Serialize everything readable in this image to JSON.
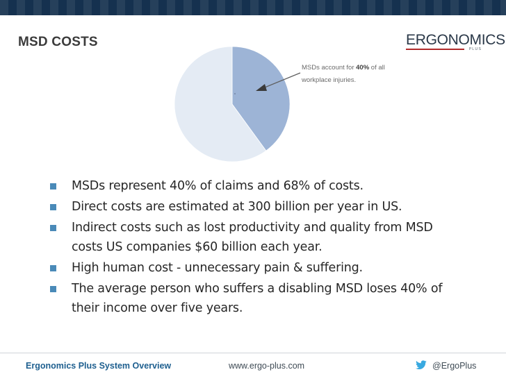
{
  "header": {
    "title": "MSD COSTS",
    "logo_text": "ERGONOMICS",
    "logo_sub": "PLUS"
  },
  "chart_data": {
    "type": "pie",
    "slices": [
      {
        "label": "MSDs",
        "value": 40,
        "color": "#9db4d6"
      },
      {
        "label": "",
        "value": 60,
        "color": "#e4ebf4"
      }
    ],
    "annotation": {
      "line1_prefix": "MSDs account for ",
      "line1_bold": "40%",
      "line1_suffix": " of all",
      "line2": "workplace injuries."
    }
  },
  "bullets": [
    "MSDs represent 40% of claims and 68% of costs.",
    "Direct costs are estimated at 300 billion per year in US.",
    "Indirect costs such as lost productivity and quality from MSD costs US companies $60 billion each year.",
    "High human cost - unnecessary pain & suffering.",
    "The average person who suffers a disabling MSD loses 40% of their income over five years."
  ],
  "footer": {
    "left": "Ergonomics Plus System Overview",
    "middle": "www.ergo-plus.com",
    "right": "@ErgoPlus",
    "twitter_icon": "twitter-bird-icon"
  },
  "colors": {
    "topband": "#15314f",
    "bullet_square": "#4a8ab8",
    "footer_left": "#1e5f8f"
  }
}
